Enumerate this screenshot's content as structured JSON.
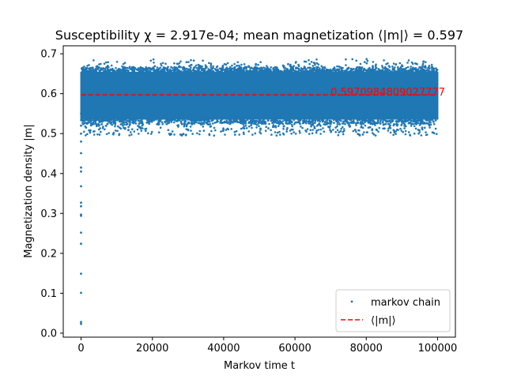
{
  "chart_data": {
    "type": "scatter",
    "title": "Susceptibility χ = 2.917e-04; mean magnetization ⟨|m|⟩ = 0.597",
    "xlabel": "Markov time t",
    "ylabel": "Magnetization density |m|",
    "xlim": [
      -5000,
      105000
    ],
    "ylim": [
      -0.01,
      0.72
    ],
    "x_ticks": [
      0,
      20000,
      40000,
      60000,
      80000,
      100000
    ],
    "x_tick_labels": [
      "0",
      "20000",
      "40000",
      "60000",
      "80000",
      "100000"
    ],
    "y_ticks": [
      0.0,
      0.1,
      0.2,
      0.3,
      0.4,
      0.5,
      0.6,
      0.7
    ],
    "y_tick_labels": [
      "0.0",
      "0.1",
      "0.2",
      "0.3",
      "0.4",
      "0.5",
      "0.6",
      "0.7"
    ],
    "grid": false,
    "legend_position": "lower-right",
    "series": [
      {
        "name": "markov chain",
        "style": "points",
        "color": "#1f77b4",
        "burn_in": [
          {
            "x": 0,
            "y": 0.023
          },
          {
            "x": 0,
            "y": 0.028
          },
          {
            "x": 0,
            "y": 0.101
          },
          {
            "x": 0,
            "y": 0.149
          },
          {
            "x": 0,
            "y": 0.224
          },
          {
            "x": 0,
            "y": 0.252
          },
          {
            "x": 0,
            "y": 0.294
          },
          {
            "x": 0,
            "y": 0.297
          },
          {
            "x": 0,
            "y": 0.318
          },
          {
            "x": 0,
            "y": 0.327
          },
          {
            "x": 0,
            "y": 0.368
          },
          {
            "x": 0,
            "y": 0.405
          },
          {
            "x": 0,
            "y": 0.415
          },
          {
            "x": 0,
            "y": 0.451
          },
          {
            "x": 0,
            "y": 0.48
          },
          {
            "x": 0,
            "y": 0.5
          },
          {
            "x": 0,
            "y": 0.52
          },
          {
            "x": 0,
            "y": 0.55
          }
        ],
        "stationary": {
          "x_range": [
            0,
            100000
          ],
          "dense_band": [
            0.535,
            0.655
          ],
          "sparse_range": [
            0.495,
            0.69
          ],
          "mean": 0.597
        }
      },
      {
        "name": "⟨|m|⟩",
        "style": "dashed-line",
        "color": "#ff0000",
        "x": [
          0,
          100000
        ],
        "y": [
          0.5970984809027777,
          0.5970984809027777
        ]
      }
    ],
    "annotations": [
      {
        "text": "0.5970984809027777",
        "x": 70000,
        "y": 0.5970984809027777,
        "color": "#ff0000"
      }
    ]
  }
}
